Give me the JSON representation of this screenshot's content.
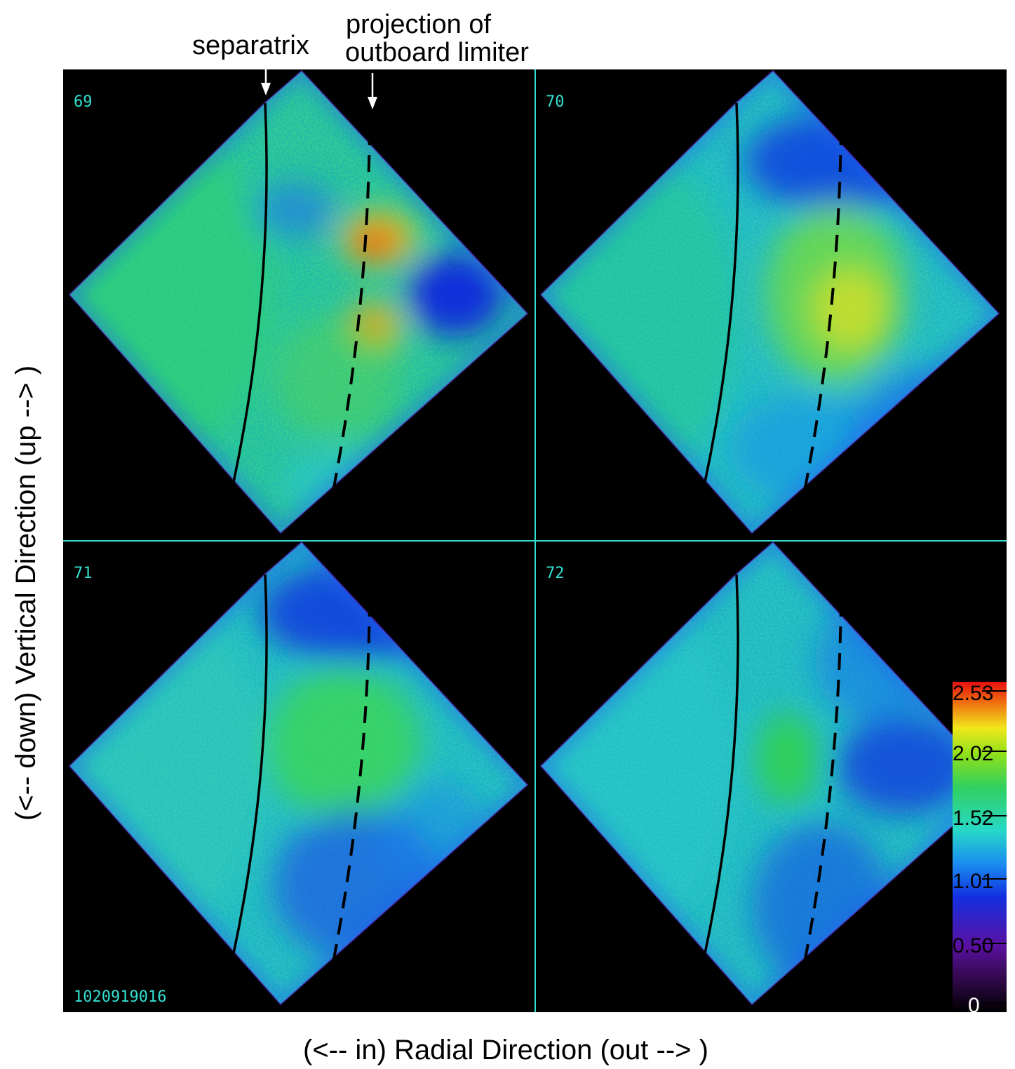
{
  "annotations": {
    "separatrix": "separatrix",
    "limiter_line1": "projection of",
    "limiter_line2": "outboard limiter"
  },
  "axes": {
    "xlabel": "(<-- in) Radial Direction  (out --> )",
    "ylabel": "(<-- down) Vertical Direction  (up --> )"
  },
  "frames": [
    {
      "label": "69",
      "pattern": "blob"
    },
    {
      "label": "70",
      "pattern": "band"
    },
    {
      "label": "71",
      "pattern": "band-weak"
    },
    {
      "label": "72",
      "pattern": "faint"
    }
  ],
  "shot_number": "1020919016",
  "colorbar": {
    "ticks": [
      "2.53",
      "2.02",
      "1.52",
      "1.01",
      "0.50",
      "0"
    ]
  },
  "colors": {
    "frame_number": "#33e0d0",
    "grid_lines": "#33e0d0",
    "panel_background": "#000000"
  }
}
